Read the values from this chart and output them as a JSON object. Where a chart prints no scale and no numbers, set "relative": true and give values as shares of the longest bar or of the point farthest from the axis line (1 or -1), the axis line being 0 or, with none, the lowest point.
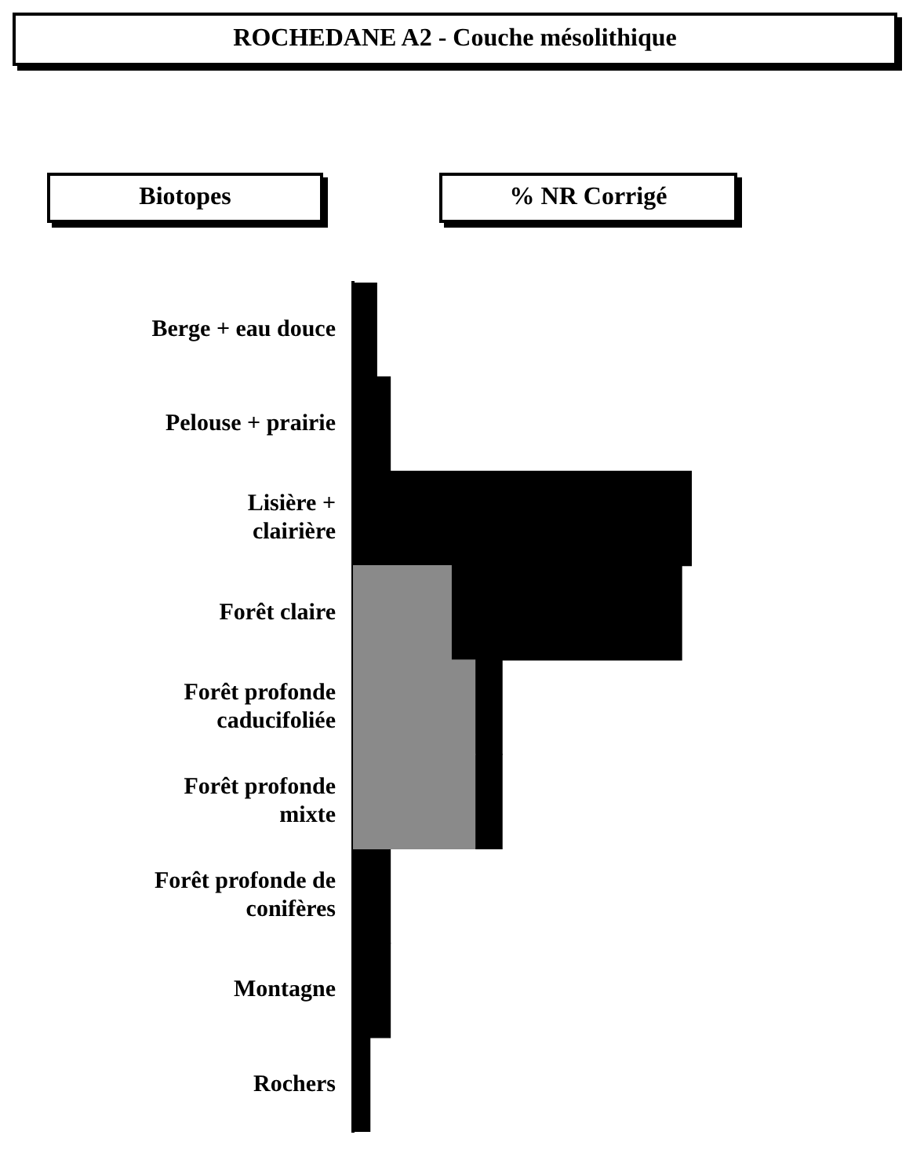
{
  "chart_data": {
    "type": "bar",
    "title": "ROCHEDANE A2 - Couche mésolithique",
    "ylabel": "Biotopes",
    "xlabel": "% NR Corrigé",
    "orientation": "horizontal",
    "stacked": true,
    "relative": true,
    "categories": [
      "Berge + eau douce",
      "Pelouse + prairie",
      "Lisière + clairière",
      "Forêt claire",
      "Forêt profonde caducifoliée",
      "Forêt profonde mixte",
      "Forêt profonde de conifères",
      "Montagne",
      "Rochers"
    ],
    "series": [
      {
        "color": "#8a8a8a",
        "values": [
          null,
          null,
          null,
          0.29,
          0.36,
          0.36,
          null,
          null,
          null
        ]
      },
      {
        "color": "#000000",
        "values": [
          0.07,
          0.11,
          1,
          0.68,
          0.08,
          0.08,
          0.11,
          0.11,
          0.05
        ]
      }
    ]
  }
}
